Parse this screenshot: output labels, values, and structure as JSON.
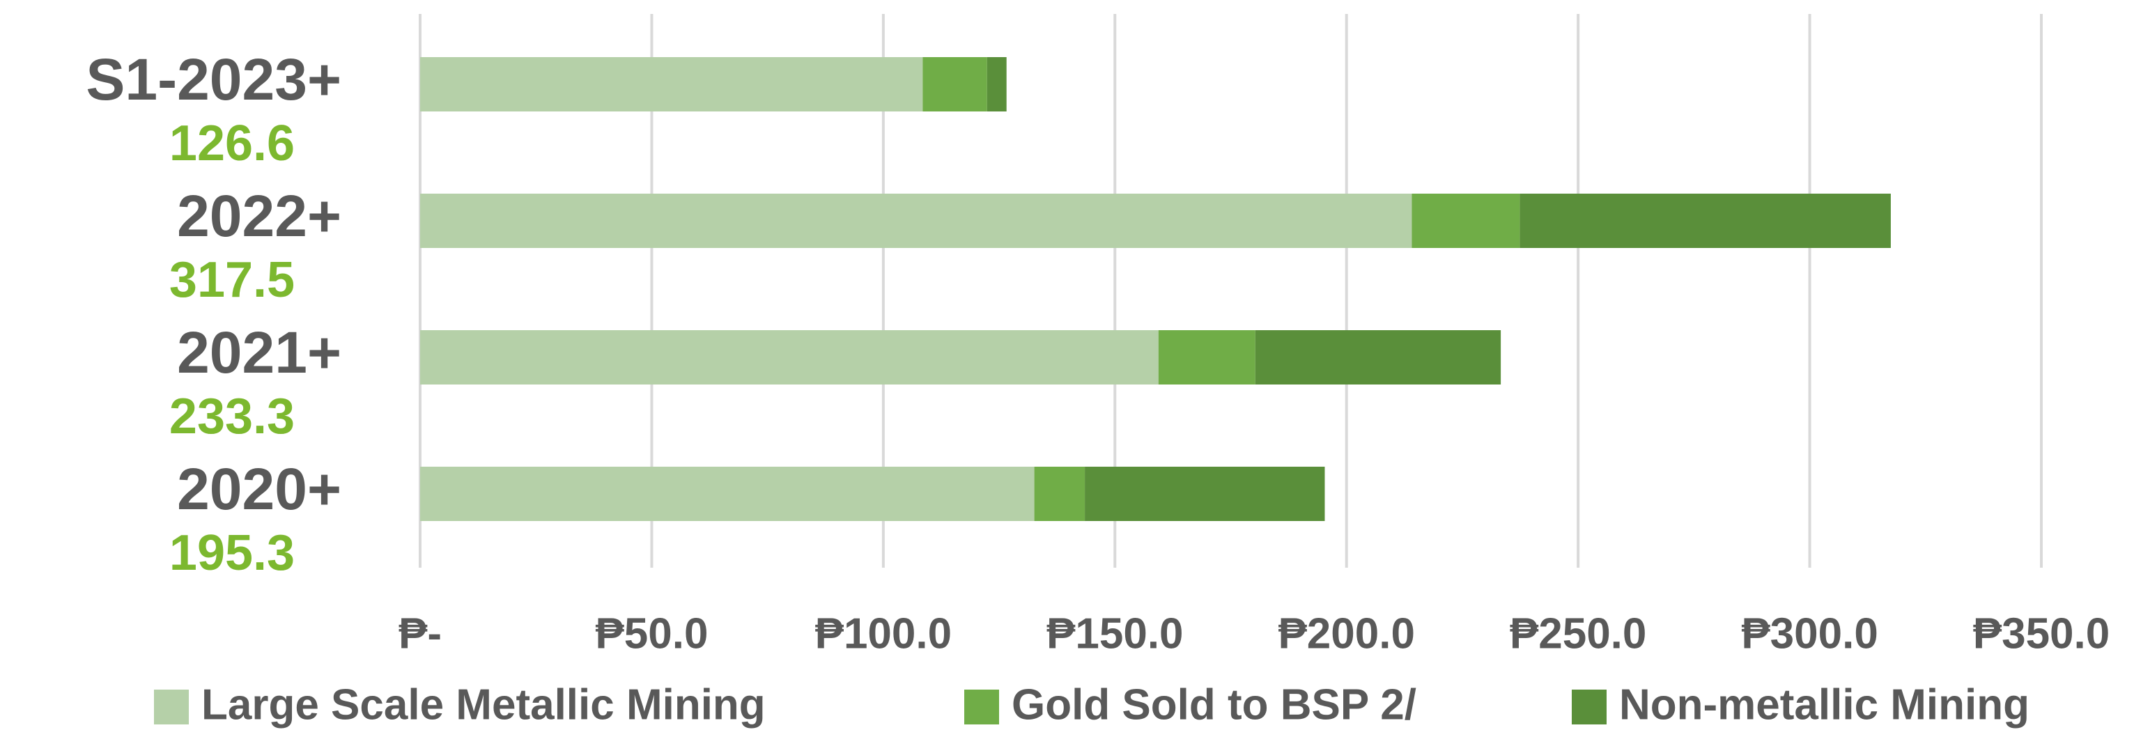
{
  "chart_data": {
    "type": "stacked-bar-horizontal",
    "categories": [
      "S1-2023+",
      "2022+",
      "2021+",
      "2020+"
    ],
    "totals": [
      "126.6",
      "317.5",
      "233.3",
      "195.3"
    ],
    "series": [
      {
        "name": "Large Scale Metallic Mining",
        "color": "#b5d0a8",
        "values": [
          108.5,
          214.1,
          159.4,
          132.6
        ]
      },
      {
        "name": "Gold Sold to BSP 2/",
        "color": "#70ad47",
        "values": [
          13.9,
          23.3,
          20.9,
          10.9
        ]
      },
      {
        "name": "Non-metallic Mining",
        "color": "#5a8f3a",
        "values": [
          4.2,
          80.1,
          53.0,
          51.8
        ]
      }
    ],
    "xlim": [
      0,
      350
    ],
    "xticks": [
      {
        "value": 0,
        "label": "₱-"
      },
      {
        "value": 50,
        "label": "₱50.0"
      },
      {
        "value": 100,
        "label": "₱100.0"
      },
      {
        "value": 150,
        "label": "₱150.0"
      },
      {
        "value": 200,
        "label": "₱200.0"
      },
      {
        "value": 250,
        "label": "₱250.0"
      },
      {
        "value": 300,
        "label": "₱300.0"
      },
      {
        "value": 350,
        "label": "₱350.0"
      }
    ],
    "grid": true,
    "legend": "bottom"
  }
}
